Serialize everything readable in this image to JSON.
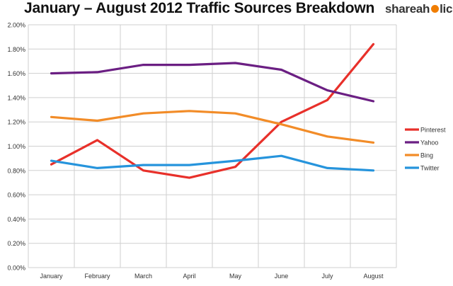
{
  "header": {
    "title": "January – August 2012 Traffic Sources Breakdown",
    "logo_left": "shareah",
    "logo_right": "lic"
  },
  "chart_data": {
    "type": "line",
    "title": "January – August 2012 Traffic Sources Breakdown",
    "xlabel": "",
    "ylabel": "",
    "categories": [
      "January",
      "February",
      "March",
      "April",
      "May",
      "June",
      "July",
      "August"
    ],
    "ylim": [
      0,
      2.0
    ],
    "yticks": [
      "0.00%",
      "0.20%",
      "0.40%",
      "0.60%",
      "0.80%",
      "1.00%",
      "1.20%",
      "1.40%",
      "1.60%",
      "1.80%",
      "2.00%"
    ],
    "grid": true,
    "legend_position": "right",
    "series": [
      {
        "name": "Pinterest",
        "color": "#e8302a",
        "values": [
          0.85,
          1.05,
          0.8,
          0.74,
          0.83,
          1.2,
          1.38,
          1.84
        ]
      },
      {
        "name": "Yahoo",
        "color": "#6b1f83",
        "values": [
          1.6,
          1.61,
          1.67,
          1.67,
          1.685,
          1.63,
          1.46,
          1.37
        ]
      },
      {
        "name": "Bing",
        "color": "#f28c28",
        "values": [
          1.24,
          1.21,
          1.27,
          1.29,
          1.27,
          1.18,
          1.08,
          1.03
        ]
      },
      {
        "name": "Twitter",
        "color": "#2694dc",
        "values": [
          0.88,
          0.82,
          0.845,
          0.845,
          0.88,
          0.92,
          0.82,
          0.8
        ]
      }
    ]
  }
}
